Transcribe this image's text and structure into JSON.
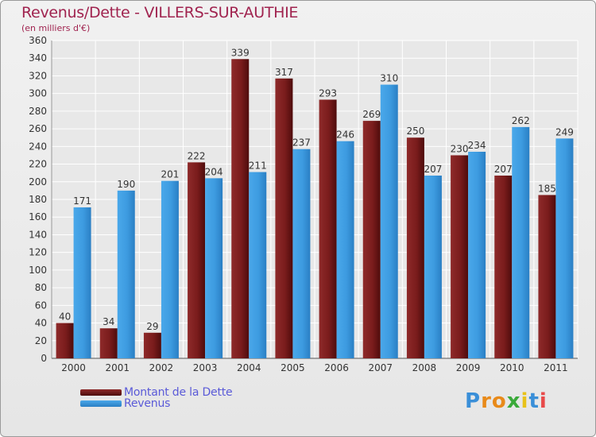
{
  "title": "Revenus/Dette - VILLERS-SUR-AUTHIE",
  "subtitle": "(en milliers d'€)",
  "colors": {
    "title": "#a0234f",
    "dette": "#7a1a1a",
    "revenus": "#3d9be0",
    "legend_text": "#5a5ad8"
  },
  "legend": {
    "dette_label": "Montant de la Dette",
    "revenus_label": "Revenus"
  },
  "logo": {
    "letters": [
      "P",
      "r",
      "o",
      "x",
      "i",
      "t",
      "i"
    ]
  },
  "chart_data": {
    "type": "bar",
    "title": "Revenus/Dette - VILLERS-SUR-AUTHIE",
    "ylabel": "(en milliers d'€)",
    "xlabel": "",
    "ylim": [
      0,
      360
    ],
    "ytick_step": 20,
    "grid": true,
    "legend_position": "bottom-left",
    "categories": [
      "2000",
      "2001",
      "2002",
      "2003",
      "2004",
      "2005",
      "2006",
      "2007",
      "2008",
      "2009",
      "2010",
      "2011"
    ],
    "series": [
      {
        "name": "Montant de la Dette",
        "values": [
          40,
          34,
          29,
          222,
          339,
          317,
          293,
          269,
          250,
          230,
          207,
          185
        ]
      },
      {
        "name": "Revenus",
        "values": [
          171,
          190,
          201,
          204,
          211,
          237,
          246,
          310,
          207,
          234,
          262,
          249
        ]
      }
    ]
  }
}
